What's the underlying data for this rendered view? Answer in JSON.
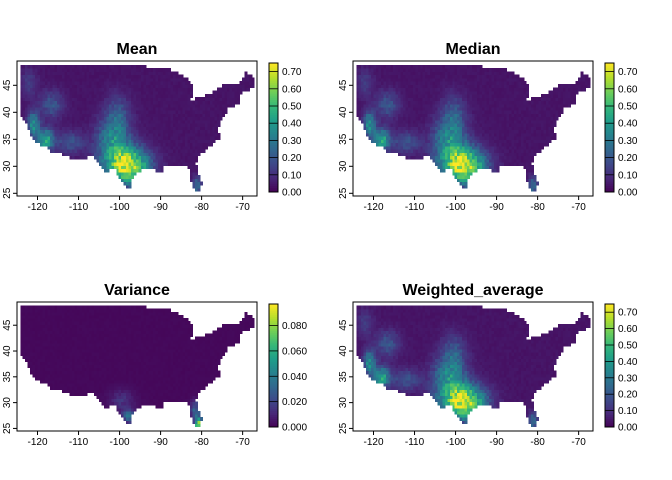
{
  "chart_data": [
    {
      "type": "heatmap",
      "title": "Mean",
      "xlabel": "",
      "ylabel": "",
      "x_ticks": [
        -120,
        -110,
        -100,
        -90,
        -80,
        -70
      ],
      "y_ticks": [
        25,
        30,
        35,
        40,
        45
      ],
      "xlim": [
        -125,
        -66.5
      ],
      "ylim": [
        24.5,
        49.5
      ],
      "legend": {
        "position": "right",
        "colormap": "viridis",
        "ticks": [
          "0.00",
          "0.10",
          "0.20",
          "0.30",
          "0.40",
          "0.50",
          "0.60",
          "0.70"
        ],
        "range": [
          0,
          0.75
        ]
      }
    },
    {
      "type": "heatmap",
      "title": "Median",
      "xlabel": "",
      "ylabel": "",
      "x_ticks": [
        -120,
        -110,
        -100,
        -90,
        -80,
        -70
      ],
      "y_ticks": [
        25,
        30,
        35,
        40,
        45
      ],
      "xlim": [
        -125,
        -66.5
      ],
      "ylim": [
        24.5,
        49.5
      ],
      "legend": {
        "position": "right",
        "colormap": "viridis",
        "ticks": [
          "0.00",
          "0.10",
          "0.20",
          "0.30",
          "0.40",
          "0.50",
          "0.60",
          "0.70"
        ],
        "range": [
          0,
          0.75
        ]
      }
    },
    {
      "type": "heatmap",
      "title": "Variance",
      "xlabel": "",
      "ylabel": "",
      "x_ticks": [
        -120,
        -110,
        -100,
        -90,
        -80,
        -70
      ],
      "y_ticks": [
        25,
        30,
        35,
        40,
        45
      ],
      "xlim": [
        -125,
        -66.5
      ],
      "ylim": [
        24.5,
        49.5
      ],
      "legend": {
        "position": "right",
        "colormap": "viridis",
        "ticks": [
          "0.000",
          "0.020",
          "0.040",
          "0.060",
          "0.080"
        ],
        "range": [
          0,
          0.097
        ]
      }
    },
    {
      "type": "heatmap",
      "title": "Weighted_average",
      "xlabel": "",
      "ylabel": "",
      "x_ticks": [
        -120,
        -110,
        -100,
        -90,
        -80,
        -70
      ],
      "y_ticks": [
        25,
        30,
        35,
        40,
        45
      ],
      "xlim": [
        -125,
        -66.5
      ],
      "ylim": [
        24.5,
        49.5
      ],
      "legend": {
        "position": "right",
        "colormap": "viridis",
        "ticks": [
          "0.00",
          "0.10",
          "0.20",
          "0.30",
          "0.40",
          "0.50",
          "0.60",
          "0.70"
        ],
        "range": [
          0,
          0.75
        ]
      }
    }
  ],
  "colors": {
    "viridis": [
      "#440154",
      "#482878",
      "#3e4989",
      "#31688e",
      "#26828e",
      "#1f9e89",
      "#35b779",
      "#6ece58",
      "#b5de2b",
      "#fde725"
    ],
    "background_fill": "#440154"
  }
}
